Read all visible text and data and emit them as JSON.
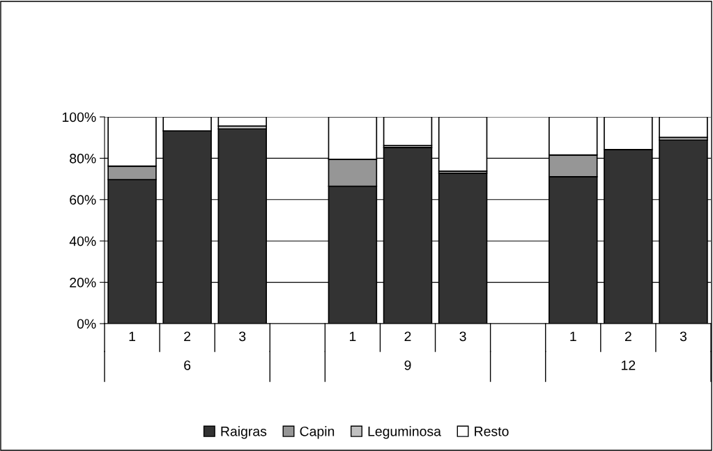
{
  "chart_data": {
    "type": "bar",
    "stacked": true,
    "categories": [
      "1",
      "2",
      "3",
      null,
      "1",
      "2",
      "3",
      null,
      "1",
      "2",
      "3"
    ],
    "series": [
      {
        "name": "Raigras",
        "color": "#333333",
        "values": [
          69.7,
          93.2,
          94.2,
          null,
          66.5,
          85.2,
          72.8,
          null,
          71.1,
          84.2,
          88.8
        ]
      },
      {
        "name": "Capin",
        "color": "#969696",
        "values": [
          6.5,
          0,
          0,
          null,
          13,
          0,
          0,
          null,
          10.5,
          0,
          0
        ]
      },
      {
        "name": "Leguminosa",
        "color": "#c0c0c0",
        "values": [
          0,
          0,
          1.4,
          null,
          0,
          1,
          1,
          null,
          0,
          0,
          1.3
        ]
      },
      {
        "name": "Resto",
        "color": "#ffffff",
        "values": [
          23.8,
          6.8,
          4.4,
          null,
          20.5,
          13.8,
          26.2,
          null,
          18.4,
          15.8,
          9.9
        ]
      }
    ],
    "annotations": [
      "6",
      "9",
      "12"
    ],
    "ylim": [
      0,
      100
    ],
    "yticks": [
      {
        "value": 0,
        "label": "0%"
      },
      {
        "value": 20,
        "label": "20%"
      },
      {
        "value": 40,
        "label": "40%"
      },
      {
        "value": 60,
        "label": "60%"
      },
      {
        "value": 80,
        "label": "80%"
      },
      {
        "value": 100,
        "label": "100%"
      }
    ],
    "grid": "y",
    "legend": "bottom"
  }
}
